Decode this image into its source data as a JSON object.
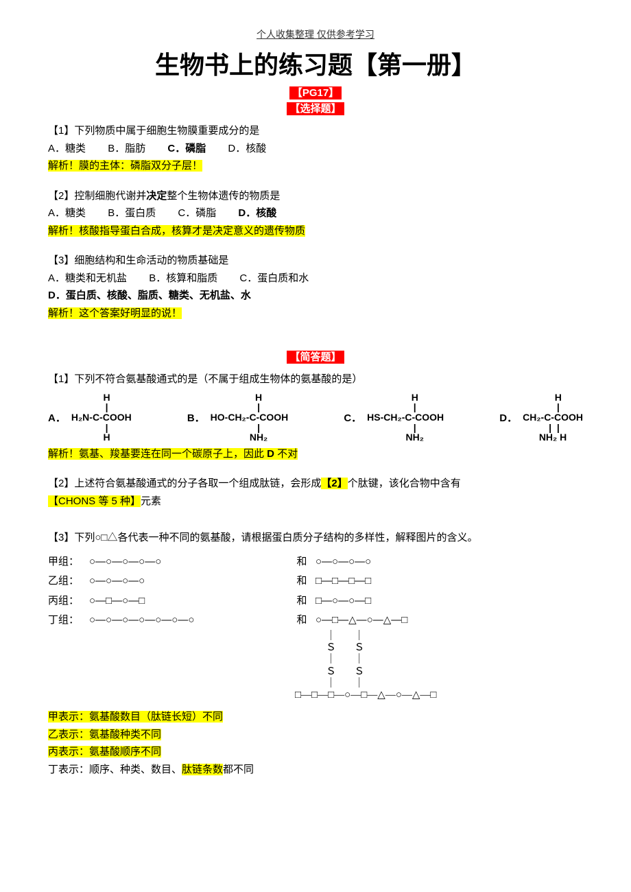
{
  "header": "个人收集整理  仅供参考学习",
  "title": "生物书上的练习题【第一册】",
  "pg_marker": "【PG17】",
  "section_mc": "【选择题】",
  "section_sa": "【简答题】",
  "mc": {
    "q1": {
      "stem": "【1】下列物质中属于细胞生物膜重要成分的是",
      "opts": {
        "A": "A．糖类",
        "B": "B．脂肪",
        "C": "C．磷脂",
        "D": "D．核酸"
      },
      "explain": "解析！膜的主体：磷脂双分子层！"
    },
    "q2": {
      "stem_pre": "【2】控制细胞代谢并",
      "stem_bold": "决定",
      "stem_post": "整个生物体遗传的物质是",
      "opts": {
        "A": "A．糖类",
        "B": "B．蛋白质",
        "C": "C．磷脂",
        "D": "D．核酸"
      },
      "explain": "解析！核酸指导蛋白合成，核算才是决定意义的遗传物质"
    },
    "q3": {
      "stem": "【3】细胞结构和生命活动的物质基础是",
      "opts": {
        "A": "A．糖类和无机盐",
        "B": "B．核算和脂质",
        "C": "C．蛋白质和水"
      },
      "optD": "D．蛋白质、核酸、脂质、糖类、无机盐、水",
      "explain": "解析！这个答案好明显的说！"
    }
  },
  "sa": {
    "q1": {
      "stem": "【1】下列不符合氨基酸通式的是（不属于组成生物体的氨基酸的是）",
      "A": {
        "label": "A．",
        "l1": "    H",
        "l2": "    |",
        "l3": "H₂N-C-COOH",
        "l4": "    |",
        "l5": "    H"
      },
      "B": {
        "label": "B．",
        "l1": "       H",
        "l2": "       |",
        "l3": "HO-CH₂-C-COOH",
        "l4": "       |",
        "l5": "       NH₂"
      },
      "C": {
        "label": "C．",
        "l1": "       H",
        "l2": "       |",
        "l3": "HS-CH₂-C-COOH",
        "l4": "       |",
        "l5": "       NH₂"
      },
      "D": {
        "label": "D．",
        "l1": "    H",
        "l2": "    |",
        "l3": "CH₂-C-COOH",
        "l4": " |  |",
        "l5": "NH₂ H"
      },
      "explain_pre": "解析！氨基、羧基要连在同一个碳原子上，因此 ",
      "explain_mid": "D",
      "explain_post": " 不对"
    },
    "q2": {
      "pre": "【2】上述符合氨基酸通式的分子各取一个组成肽链，会形成",
      "ans1": "【2】",
      "mid": "个肽键，该化合物中含有",
      "ans2_pre": "【CHONS",
      "ans2_mid1": " 等 ",
      "ans2_mid2": "5",
      "ans2_mid3": " 种】",
      "post": "元素"
    },
    "q3": {
      "stem": "【3】下列○□△各代表一种不同的氨基酸，请根据蛋白质分子结构的多样性，解释图片的含义。",
      "rows": {
        "jia": {
          "label": "甲组：",
          "left": "○—○—○—○—○",
          "mid": "和",
          "right": "○—○—○—○"
        },
        "yi": {
          "label": "乙组：",
          "left": "○—○—○—○",
          "mid": "和",
          "right": "□—□—□—□"
        },
        "bing": {
          "label": "丙组：",
          "left": "○—□—○—□",
          "mid": "和",
          "right": "□—○—○—□"
        },
        "ding": {
          "label": "丁组：",
          "left": "○—○—○—○—○—○—○",
          "mid": "和",
          "right": "○—□—△—○—△—□"
        }
      },
      "ds": {
        "l1": "            ｜       ｜",
        "l2": "            Ｓ       Ｓ",
        "l3": "            ｜       ｜",
        "l4": "            Ｓ       Ｓ",
        "l5": "            ｜       ｜",
        "l6": "□—□—□—○—□—△—○—△—□"
      },
      "ans": {
        "jia": "甲表示：氨基酸数目（肽链长短）不同",
        "yi": "乙表示：氨基酸种类不同",
        "bing": "丙表示：氨基酸顺序不同",
        "ding_pre": "丁表示：顺序、种类、数目、",
        "ding_hl": "肽链条数",
        "ding_post": "都不同"
      }
    }
  },
  "colors": {
    "highlight_bg": "#ffff00",
    "red_bg": "#ff0000",
    "text": "#000000"
  }
}
